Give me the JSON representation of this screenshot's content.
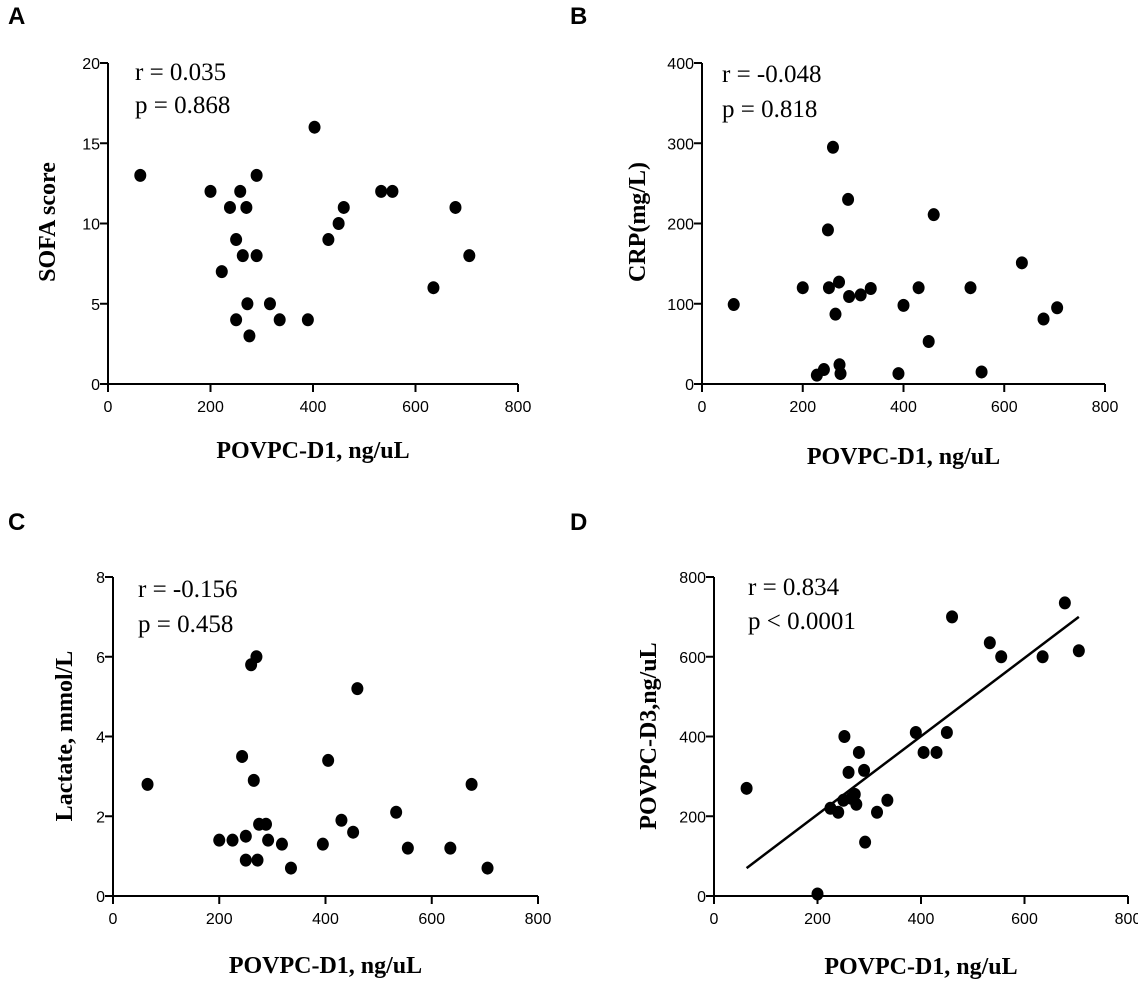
{
  "chart_data": [
    {
      "panel": "A",
      "type": "scatter",
      "xlabel": "POVPC-D1, ng/uL",
      "ylabel": "SOFA score",
      "xlim": [
        0,
        800
      ],
      "ylim": [
        0,
        20
      ],
      "xticks": [
        "0",
        "200",
        "400",
        "600",
        "800"
      ],
      "yticks": [
        "0",
        "5",
        "10",
        "15",
        "20"
      ],
      "xtick_values": [
        0,
        200,
        400,
        600,
        800
      ],
      "ytick_values": [
        0,
        5,
        10,
        15,
        20
      ],
      "annotations": [
        "r = 0.035",
        "p = 0.868"
      ],
      "points": [
        [
          63,
          13
        ],
        [
          200,
          12
        ],
        [
          222,
          7
        ],
        [
          238,
          11
        ],
        [
          250,
          4
        ],
        [
          250,
          9
        ],
        [
          258,
          12
        ],
        [
          263,
          8
        ],
        [
          270,
          11
        ],
        [
          272,
          5
        ],
        [
          276,
          3
        ],
        [
          290,
          13
        ],
        [
          290,
          8
        ],
        [
          316,
          5
        ],
        [
          335,
          4
        ],
        [
          390,
          4
        ],
        [
          403,
          16
        ],
        [
          430,
          9
        ],
        [
          450,
          10
        ],
        [
          460,
          11
        ],
        [
          533,
          12
        ],
        [
          555,
          12
        ],
        [
          635,
          6
        ],
        [
          678,
          11
        ],
        [
          705,
          8
        ]
      ]
    },
    {
      "panel": "B",
      "type": "scatter",
      "xlabel": "POVPC-D1, ng/uL",
      "ylabel": "CRP(mg/L)",
      "xlim": [
        0,
        800
      ],
      "ylim": [
        0,
        400
      ],
      "xticks": [
        "0",
        "200",
        "400",
        "600",
        "800"
      ],
      "yticks": [
        "0",
        "100",
        "200",
        "300",
        "400"
      ],
      "xtick_values": [
        0,
        200,
        400,
        600,
        800
      ],
      "ytick_values": [
        0,
        100,
        200,
        300,
        400
      ],
      "annotations": [
        "r = -0.048",
        "p = 0.818"
      ],
      "points": [
        [
          63,
          99
        ],
        [
          200,
          120
        ],
        [
          228,
          11
        ],
        [
          242,
          18
        ],
        [
          250,
          192
        ],
        [
          252,
          120
        ],
        [
          260,
          295
        ],
        [
          265,
          87
        ],
        [
          272,
          127
        ],
        [
          273,
          24
        ],
        [
          275,
          13
        ],
        [
          290,
          230
        ],
        [
          292,
          109
        ],
        [
          315,
          111
        ],
        [
          335,
          119
        ],
        [
          390,
          13
        ],
        [
          400,
          98
        ],
        [
          430,
          120
        ],
        [
          450,
          53
        ],
        [
          460,
          211
        ],
        [
          533,
          120
        ],
        [
          555,
          15
        ],
        [
          635,
          151
        ],
        [
          678,
          81
        ],
        [
          705,
          95
        ]
      ]
    },
    {
      "panel": "C",
      "type": "scatter",
      "xlabel": "POVPC-D1, ng/uL",
      "ylabel": "Lactate, mmol/L",
      "xlim": [
        0,
        800
      ],
      "ylim": [
        0,
        8
      ],
      "xticks": [
        "0",
        "200",
        "400",
        "600",
        "800"
      ],
      "yticks": [
        "0",
        "2",
        "4",
        "6",
        "8"
      ],
      "xtick_values": [
        0,
        200,
        400,
        600,
        800
      ],
      "ytick_values": [
        0,
        2,
        4,
        6,
        8
      ],
      "annotations": [
        "r = -0.156",
        "p = 0.458"
      ],
      "points": [
        [
          65,
          2.8
        ],
        [
          200,
          1.4
        ],
        [
          225,
          1.4
        ],
        [
          243,
          3.5
        ],
        [
          250,
          0.9
        ],
        [
          250,
          1.5
        ],
        [
          260,
          5.8
        ],
        [
          265,
          2.9
        ],
        [
          270,
          6.0
        ],
        [
          272,
          0.9
        ],
        [
          275,
          1.8
        ],
        [
          288,
          1.8
        ],
        [
          292,
          1.4
        ],
        [
          318,
          1.3
        ],
        [
          335,
          0.7
        ],
        [
          395,
          1.3
        ],
        [
          405,
          3.4
        ],
        [
          430,
          1.9
        ],
        [
          452,
          1.6
        ],
        [
          460,
          5.2
        ],
        [
          533,
          2.1
        ],
        [
          555,
          1.2
        ],
        [
          635,
          1.2
        ],
        [
          675,
          2.8
        ],
        [
          705,
          0.7
        ]
      ]
    },
    {
      "panel": "D",
      "type": "scatter",
      "xlabel": "POVPC-D1, ng/uL",
      "ylabel": "POVPC-D3,ng/uL",
      "xlim": [
        0,
        800
      ],
      "ylim": [
        0,
        800
      ],
      "xticks": [
        "0",
        "200",
        "400",
        "600",
        "800"
      ],
      "yticks": [
        "0",
        "200",
        "400",
        "600",
        "800"
      ],
      "xtick_values": [
        0,
        200,
        400,
        600,
        800
      ],
      "ytick_values": [
        0,
        200,
        400,
        600,
        800
      ],
      "annotations": [
        "r = 0.834",
        "p < 0.0001"
      ],
      "fit_line": [
        [
          63,
          70
        ],
        [
          705,
          700
        ]
      ],
      "points": [
        [
          63,
          270
        ],
        [
          200,
          5
        ],
        [
          225,
          220
        ],
        [
          240,
          210
        ],
        [
          250,
          240
        ],
        [
          252,
          400
        ],
        [
          260,
          310
        ],
        [
          265,
          245
        ],
        [
          272,
          255
        ],
        [
          275,
          230
        ],
        [
          280,
          360
        ],
        [
          290,
          315
        ],
        [
          292,
          135
        ],
        [
          315,
          210
        ],
        [
          335,
          240
        ],
        [
          390,
          410
        ],
        [
          405,
          360
        ],
        [
          430,
          360
        ],
        [
          450,
          410
        ],
        [
          460,
          700
        ],
        [
          533,
          635
        ],
        [
          555,
          600
        ],
        [
          635,
          600
        ],
        [
          678,
          735
        ],
        [
          705,
          615
        ]
      ]
    }
  ]
}
